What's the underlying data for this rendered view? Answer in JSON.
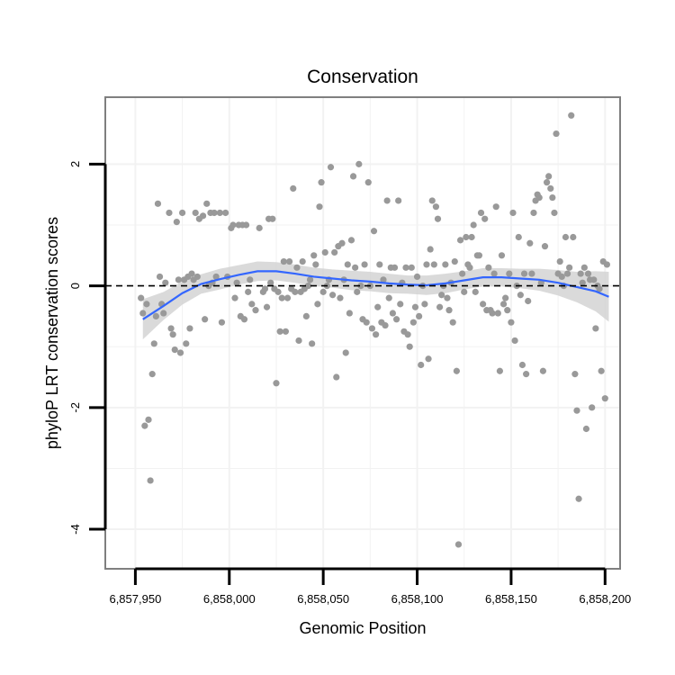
{
  "chart_data": {
    "type": "scatter",
    "title": "Conservation",
    "xlabel": "Genomic Position",
    "ylabel": "phyloP LRT conservation scores",
    "xlim": [
      6857934,
      6858208
    ],
    "ylim": [
      -4.65,
      3.1
    ],
    "x_ticks": [
      6857950,
      6858000,
      6858050,
      6858100,
      6858150,
      6858200
    ],
    "x_tick_labels": [
      "6,857,950",
      "6,858,000",
      "6,858,050",
      "6,858,100",
      "6,858,150",
      "6,858,200"
    ],
    "y_ticks": [
      -4,
      -2,
      0,
      2
    ],
    "y_tick_labels": [
      "-4",
      "-2",
      "0",
      "2"
    ],
    "reference_line": {
      "y": 0,
      "style": "dashed"
    },
    "colors": {
      "points": "#999999",
      "smooth": "#3366ff",
      "ribbon": "#d3d3d3",
      "panel_border": "#7f7f7f",
      "grid": "#f2f2f2"
    },
    "points": [
      [
        6857953,
        -0.2
      ],
      [
        6857954,
        -0.45
      ],
      [
        6857955,
        -2.3
      ],
      [
        6857956,
        -0.3
      ],
      [
        6857957,
        -2.2
      ],
      [
        6857958,
        -3.2
      ],
      [
        6857959,
        -1.45
      ],
      [
        6857960,
        -0.95
      ],
      [
        6857961,
        -0.5
      ],
      [
        6857962,
        1.35
      ],
      [
        6857963,
        0.15
      ],
      [
        6857964,
        -0.3
      ],
      [
        6857965,
        -0.45
      ],
      [
        6857966,
        0.05
      ],
      [
        6857968,
        1.2
      ],
      [
        6857969,
        -0.7
      ],
      [
        6857970,
        -0.8
      ],
      [
        6857971,
        -1.05
      ],
      [
        6857972,
        1.05
      ],
      [
        6857973,
        0.1
      ],
      [
        6857974,
        -1.1
      ],
      [
        6857975,
        1.2
      ],
      [
        6857976,
        0.1
      ],
      [
        6857977,
        -0.95
      ],
      [
        6857978,
        0.15
      ],
      [
        6857979,
        -0.7
      ],
      [
        6857980,
        0.2
      ],
      [
        6857981,
        0.1
      ],
      [
        6857982,
        1.2
      ],
      [
        6857983,
        0.15
      ],
      [
        6857984,
        1.1
      ],
      [
        6857986,
        1.15
      ],
      [
        6857987,
        -0.55
      ],
      [
        6857988,
        1.35
      ],
      [
        6857989,
        0.0
      ],
      [
        6857990,
        1.2
      ],
      [
        6857991,
        0.05
      ],
      [
        6857992,
        1.2
      ],
      [
        6857993,
        0.15
      ],
      [
        6857995,
        1.2
      ],
      [
        6857996,
        -0.6
      ],
      [
        6857998,
        1.2
      ],
      [
        6857999,
        0.15
      ],
      [
        6858001,
        0.95
      ],
      [
        6858002,
        1.0
      ],
      [
        6858003,
        -0.2
      ],
      [
        6858004,
        0.05
      ],
      [
        6858005,
        1.0
      ],
      [
        6858006,
        -0.5
      ],
      [
        6858007,
        1.0
      ],
      [
        6858008,
        -0.55
      ],
      [
        6858009,
        1.0
      ],
      [
        6858010,
        -0.1
      ],
      [
        6858011,
        0.1
      ],
      [
        6858012,
        -0.3
      ],
      [
        6858014,
        -0.4
      ],
      [
        6858016,
        0.95
      ],
      [
        6858018,
        -0.1
      ],
      [
        6858019,
        -0.05
      ],
      [
        6858020,
        -0.35
      ],
      [
        6858021,
        1.1
      ],
      [
        6858022,
        0.05
      ],
      [
        6858023,
        1.1
      ],
      [
        6858024,
        -0.05
      ],
      [
        6858025,
        -1.6
      ],
      [
        6858026,
        -0.1
      ],
      [
        6858027,
        -0.75
      ],
      [
        6858028,
        -0.2
      ],
      [
        6858029,
        0.4
      ],
      [
        6858030,
        -0.75
      ],
      [
        6858031,
        -0.2
      ],
      [
        6858032,
        0.4
      ],
      [
        6858033,
        -0.05
      ],
      [
        6858034,
        1.6
      ],
      [
        6858035,
        -0.1
      ],
      [
        6858036,
        0.3
      ],
      [
        6858037,
        -0.9
      ],
      [
        6858038,
        -0.1
      ],
      [
        6858039,
        0.4
      ],
      [
        6858040,
        -0.05
      ],
      [
        6858041,
        -0.5
      ],
      [
        6858042,
        0.0
      ],
      [
        6858043,
        0.1
      ],
      [
        6858044,
        -0.95
      ],
      [
        6858045,
        0.5
      ],
      [
        6858046,
        0.35
      ],
      [
        6858047,
        -0.3
      ],
      [
        6858048,
        1.3
      ],
      [
        6858049,
        1.7
      ],
      [
        6858050,
        -0.1
      ],
      [
        6858051,
        0.55
      ],
      [
        6858052,
        0.0
      ],
      [
        6858053,
        0.1
      ],
      [
        6858054,
        1.95
      ],
      [
        6858055,
        -0.15
      ],
      [
        6858056,
        0.55
      ],
      [
        6858057,
        -1.5
      ],
      [
        6858058,
        0.65
      ],
      [
        6858059,
        -0.2
      ],
      [
        6858060,
        0.7
      ],
      [
        6858061,
        0.1
      ],
      [
        6858062,
        -1.1
      ],
      [
        6858063,
        0.35
      ],
      [
        6858064,
        -0.45
      ],
      [
        6858065,
        0.75
      ],
      [
        6858066,
        1.8
      ],
      [
        6858067,
        0.3
      ],
      [
        6858068,
        -0.1
      ],
      [
        6858069,
        2.0
      ],
      [
        6858070,
        0.0
      ],
      [
        6858071,
        -0.55
      ],
      [
        6858072,
        0.35
      ],
      [
        6858073,
        -0.6
      ],
      [
        6858074,
        1.7
      ],
      [
        6858075,
        0.0
      ],
      [
        6858076,
        -0.7
      ],
      [
        6858077,
        0.9
      ],
      [
        6858078,
        -0.8
      ],
      [
        6858079,
        -0.35
      ],
      [
        6858080,
        0.35
      ],
      [
        6858081,
        -0.6
      ],
      [
        6858082,
        0.1
      ],
      [
        6858083,
        -0.65
      ],
      [
        6858084,
        1.4
      ],
      [
        6858085,
        -0.2
      ],
      [
        6858086,
        0.3
      ],
      [
        6858087,
        -0.45
      ],
      [
        6858088,
        0.3
      ],
      [
        6858089,
        -0.55
      ],
      [
        6858090,
        1.4
      ],
      [
        6858091,
        -0.3
      ],
      [
        6858092,
        0.05
      ],
      [
        6858093,
        -0.75
      ],
      [
        6858094,
        0.3
      ],
      [
        6858095,
        -0.8
      ],
      [
        6858096,
        -1.0
      ],
      [
        6858097,
        0.3
      ],
      [
        6858098,
        -0.6
      ],
      [
        6858099,
        -0.35
      ],
      [
        6858100,
        0.15
      ],
      [
        6858101,
        -0.5
      ],
      [
        6858102,
        -1.3
      ],
      [
        6858103,
        0.0
      ],
      [
        6858104,
        -0.3
      ],
      [
        6858105,
        0.35
      ],
      [
        6858106,
        -1.2
      ],
      [
        6858107,
        0.6
      ],
      [
        6858108,
        1.4
      ],
      [
        6858109,
        0.35
      ],
      [
        6858110,
        1.3
      ],
      [
        6858111,
        1.1
      ],
      [
        6858112,
        -0.35
      ],
      [
        6858113,
        -0.15
      ],
      [
        6858114,
        0.0
      ],
      [
        6858115,
        0.35
      ],
      [
        6858116,
        -0.2
      ],
      [
        6858117,
        -0.4
      ],
      [
        6858118,
        0.05
      ],
      [
        6858119,
        -0.6
      ],
      [
        6858120,
        0.4
      ],
      [
        6858121,
        -1.4
      ],
      [
        6858122,
        -4.25
      ],
      [
        6858123,
        0.75
      ],
      [
        6858124,
        0.2
      ],
      [
        6858125,
        -0.1
      ],
      [
        6858126,
        0.8
      ],
      [
        6858127,
        0.35
      ],
      [
        6858128,
        0.3
      ],
      [
        6858129,
        0.8
      ],
      [
        6858130,
        1.0
      ],
      [
        6858131,
        -0.1
      ],
      [
        6858132,
        0.5
      ],
      [
        6858133,
        0.5
      ],
      [
        6858134,
        1.2
      ],
      [
        6858135,
        -0.3
      ],
      [
        6858136,
        1.1
      ],
      [
        6858137,
        -0.4
      ],
      [
        6858138,
        0.3
      ],
      [
        6858139,
        -0.4
      ],
      [
        6858140,
        -0.45
      ],
      [
        6858141,
        0.2
      ],
      [
        6858142,
        1.3
      ],
      [
        6858143,
        -0.45
      ],
      [
        6858144,
        -1.4
      ],
      [
        6858145,
        0.5
      ],
      [
        6858146,
        -0.3
      ],
      [
        6858147,
        -0.2
      ],
      [
        6858148,
        -0.4
      ],
      [
        6858149,
        0.2
      ],
      [
        6858150,
        -0.6
      ],
      [
        6858151,
        1.2
      ],
      [
        6858152,
        -0.9
      ],
      [
        6858153,
        0.0
      ],
      [
        6858154,
        0.8
      ],
      [
        6858155,
        -0.15
      ],
      [
        6858156,
        -1.3
      ],
      [
        6858157,
        0.2
      ],
      [
        6858158,
        -1.45
      ],
      [
        6858159,
        -0.25
      ],
      [
        6858160,
        0.7
      ],
      [
        6858161,
        0.2
      ],
      [
        6858162,
        1.2
      ],
      [
        6858163,
        1.4
      ],
      [
        6858164,
        1.5
      ],
      [
        6858165,
        1.45
      ],
      [
        6858166,
        0.05
      ],
      [
        6858167,
        -1.4
      ],
      [
        6858168,
        0.65
      ],
      [
        6858169,
        1.7
      ],
      [
        6858170,
        1.8
      ],
      [
        6858171,
        1.6
      ],
      [
        6858172,
        1.45
      ],
      [
        6858173,
        1.2
      ],
      [
        6858174,
        2.5
      ],
      [
        6858175,
        0.2
      ],
      [
        6858176,
        0.4
      ],
      [
        6858177,
        0.15
      ],
      [
        6858178,
        0.0
      ],
      [
        6858179,
        0.8
      ],
      [
        6858180,
        0.2
      ],
      [
        6858181,
        0.3
      ],
      [
        6858182,
        2.8
      ],
      [
        6858183,
        0.8
      ],
      [
        6858184,
        -1.45
      ],
      [
        6858185,
        -2.05
      ],
      [
        6858186,
        -3.5
      ],
      [
        6858187,
        0.2
      ],
      [
        6858188,
        0.05
      ],
      [
        6858189,
        0.3
      ],
      [
        6858190,
        -2.35
      ],
      [
        6858191,
        0.2
      ],
      [
        6858192,
        0.1
      ],
      [
        6858193,
        -2.0
      ],
      [
        6858194,
        0.1
      ],
      [
        6858195,
        -0.7
      ],
      [
        6858196,
        0.0
      ],
      [
        6858197,
        -0.05
      ],
      [
        6858198,
        -1.4
      ],
      [
        6858199,
        0.4
      ],
      [
        6858200,
        -1.85
      ],
      [
        6858201,
        0.35
      ]
    ],
    "smooth": [
      [
        6857954,
        -0.55
      ],
      [
        6857965,
        -0.33
      ],
      [
        6857975,
        -0.12
      ],
      [
        6857985,
        0.03
      ],
      [
        6857995,
        0.11
      ],
      [
        6858005,
        0.18
      ],
      [
        6858015,
        0.24
      ],
      [
        6858025,
        0.24
      ],
      [
        6858035,
        0.2
      ],
      [
        6858045,
        0.15
      ],
      [
        6858055,
        0.12
      ],
      [
        6858065,
        0.09
      ],
      [
        6858075,
        0.07
      ],
      [
        6858085,
        0.04
      ],
      [
        6858095,
        0.02
      ],
      [
        6858105,
        0.01
      ],
      [
        6858115,
        0.04
      ],
      [
        6858125,
        0.09
      ],
      [
        6858135,
        0.14
      ],
      [
        6858145,
        0.14
      ],
      [
        6858155,
        0.12
      ],
      [
        6858165,
        0.1
      ],
      [
        6858175,
        0.05
      ],
      [
        6858185,
        -0.02
      ],
      [
        6858195,
        -0.09
      ],
      [
        6858202,
        -0.18
      ]
    ],
    "ribbon_lower": [
      -0.88,
      -0.56,
      -0.31,
      -0.13,
      -0.06,
      0.02,
      0.08,
      0.09,
      0.05,
      0.0,
      -0.03,
      -0.07,
      -0.09,
      -0.12,
      -0.13,
      -0.15,
      -0.12,
      -0.06,
      -0.01,
      -0.01,
      -0.04,
      -0.08,
      -0.16,
      -0.27,
      -0.42,
      -0.59
    ],
    "ribbon_upper": [
      -0.22,
      -0.1,
      0.07,
      0.19,
      0.28,
      0.34,
      0.4,
      0.39,
      0.35,
      0.3,
      0.27,
      0.25,
      0.23,
      0.2,
      0.17,
      0.17,
      0.2,
      0.24,
      0.29,
      0.29,
      0.28,
      0.28,
      0.26,
      0.23,
      0.24,
      0.23
    ]
  }
}
